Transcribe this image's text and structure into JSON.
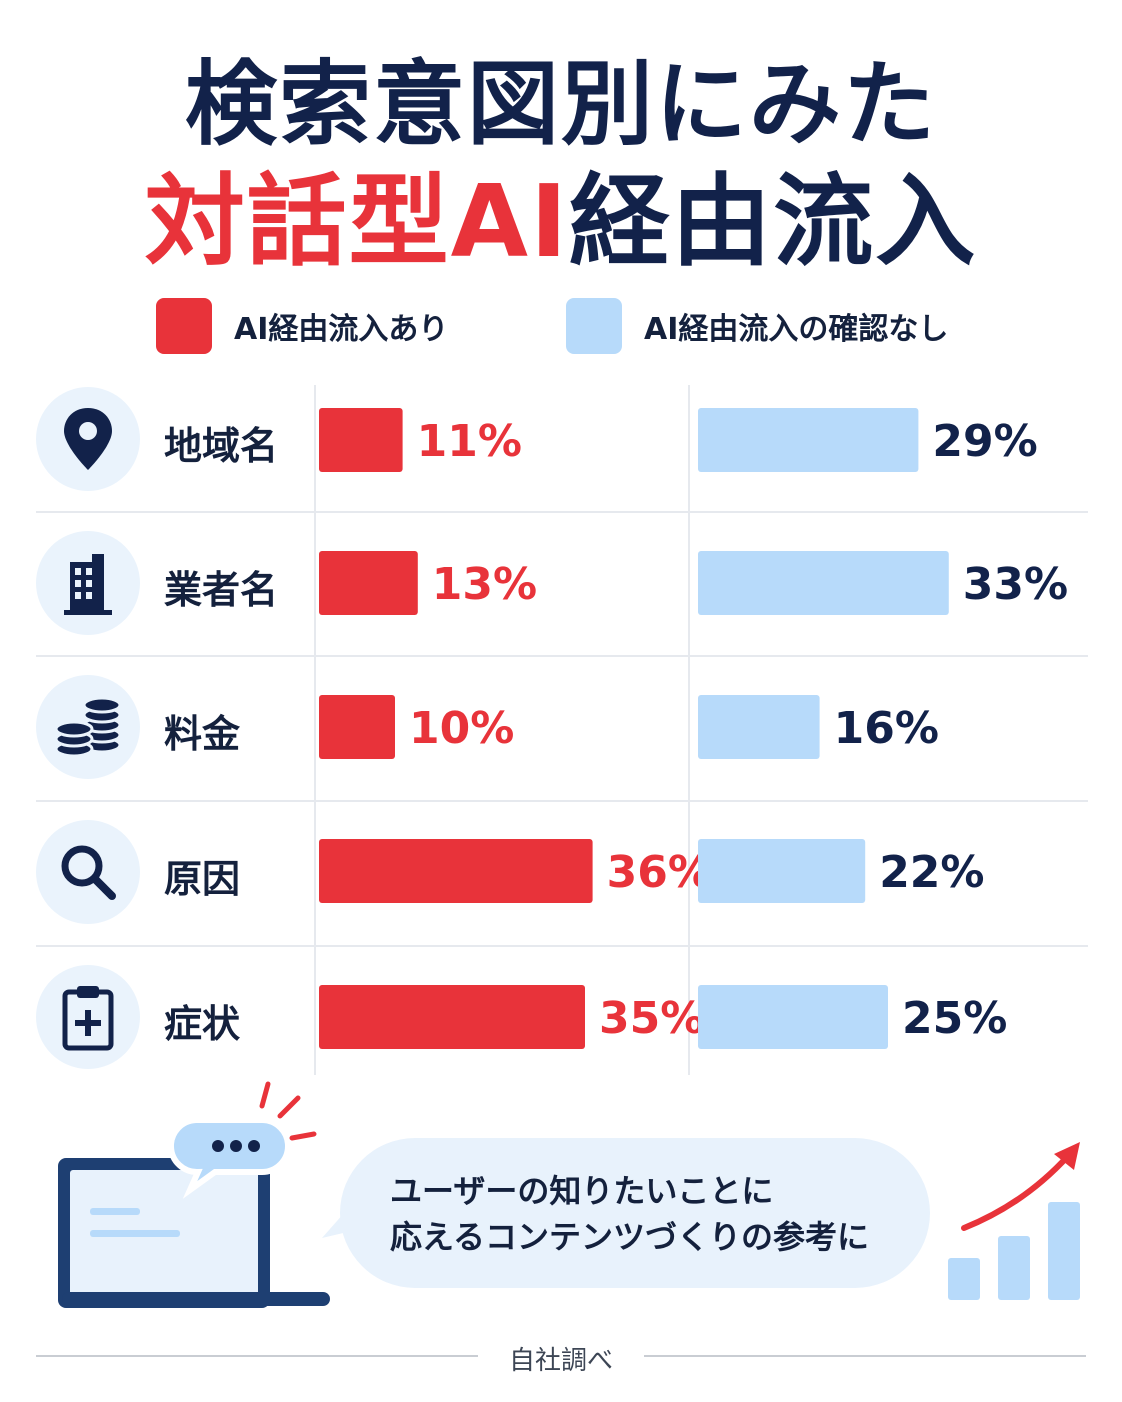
{
  "title": {
    "line1": "検索意図別にみた",
    "line2_red": "対話型AI",
    "line2_navy": "経由流入"
  },
  "legend": {
    "ai_label": "AI経由流入あり",
    "non_ai_label": "AI経由流入の確認なし"
  },
  "colors": {
    "ai": "#e8333a",
    "non_ai": "#b7dafa",
    "navy": "#12224a"
  },
  "rows": [
    {
      "label": "地域名",
      "icon": "location-pin-icon"
    },
    {
      "label": "業者名",
      "icon": "building-icon"
    },
    {
      "label": "料金",
      "icon": "coins-icon"
    },
    {
      "label": "原因",
      "icon": "magnifier-icon"
    },
    {
      "label": "症状",
      "icon": "clipboard-medical-icon"
    }
  ],
  "chart_data": {
    "type": "bar",
    "orientation": "horizontal",
    "categories": [
      "地域名",
      "業者名",
      "料金",
      "原因",
      "症状"
    ],
    "series": [
      {
        "name": "AI経由流入あり",
        "values": [
          11,
          13,
          10,
          36,
          35
        ],
        "labels": [
          "11%",
          "13%",
          "10%",
          "36%",
          "35%"
        ]
      },
      {
        "name": "AI経由流入の確認なし",
        "values": [
          29,
          33,
          16,
          22,
          25
        ],
        "labels": [
          "29%",
          "33%",
          "16%",
          "22%",
          "25%"
        ]
      }
    ],
    "legend": "top",
    "grid": false
  },
  "bubble": {
    "line1": "ユーザーの知りたいことに",
    "line2": "応えるコンテンツづくりの参考に"
  },
  "footnote": "自社調べ"
}
